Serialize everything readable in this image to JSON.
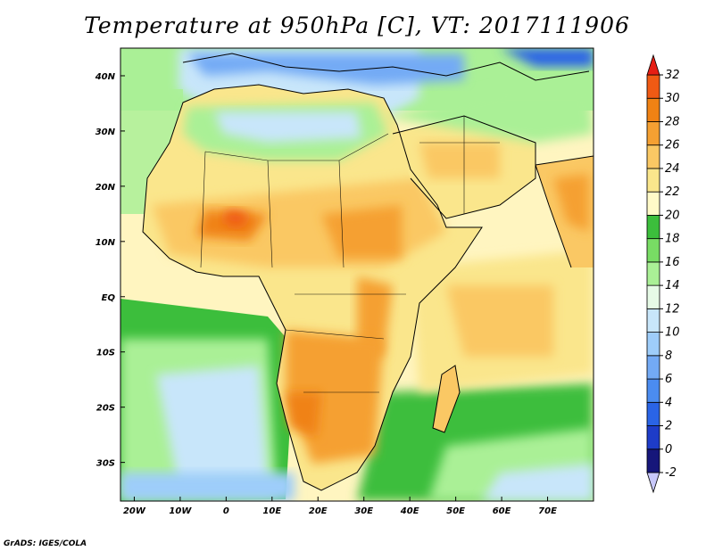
{
  "title": "Temperature at 950hPa [C], VT: 2017111906",
  "credit": "GrADS: IGES/COLA",
  "map": {
    "lon_range": [
      -23,
      80
    ],
    "lat_range": [
      -37,
      45
    ],
    "x_ticks": [
      {
        "lon": -20,
        "label": "20W"
      },
      {
        "lon": -10,
        "label": "10W"
      },
      {
        "lon": 0,
        "label": "0"
      },
      {
        "lon": 10,
        "label": "10E"
      },
      {
        "lon": 20,
        "label": "20E"
      },
      {
        "lon": 30,
        "label": "30E"
      },
      {
        "lon": 40,
        "label": "40E"
      },
      {
        "lon": 50,
        "label": "50E"
      },
      {
        "lon": 60,
        "label": "60E"
      },
      {
        "lon": 70,
        "label": "70E"
      }
    ],
    "y_ticks": [
      {
        "lat": 40,
        "label": "40N"
      },
      {
        "lat": 30,
        "label": "30N"
      },
      {
        "lat": 20,
        "label": "20N"
      },
      {
        "lat": 10,
        "label": "10N"
      },
      {
        "lat": 0,
        "label": "EQ"
      },
      {
        "lat": -10,
        "label": "10S"
      },
      {
        "lat": -20,
        "label": "20S"
      },
      {
        "lat": -30,
        "label": "30S"
      }
    ]
  },
  "colorbar": {
    "levels": [
      "-2",
      "0",
      "2",
      "4",
      "6",
      "8",
      "10",
      "12",
      "14",
      "16",
      "18",
      "20",
      "22",
      "24",
      "26",
      "28",
      "30",
      "32"
    ],
    "colors": [
      "#16167a",
      "#1e3cc8",
      "#2a64e6",
      "#4b8cf0",
      "#73aaf5",
      "#9ecdfa",
      "#c8e6fa",
      "#e6fae6",
      "#aaf096",
      "#78dc64",
      "#3cbe3c",
      "#fffac8",
      "#fae68c",
      "#fac864",
      "#f5a032",
      "#f08214",
      "#f05a14",
      "#e61e14",
      "#c8c8fa"
    ]
  }
}
